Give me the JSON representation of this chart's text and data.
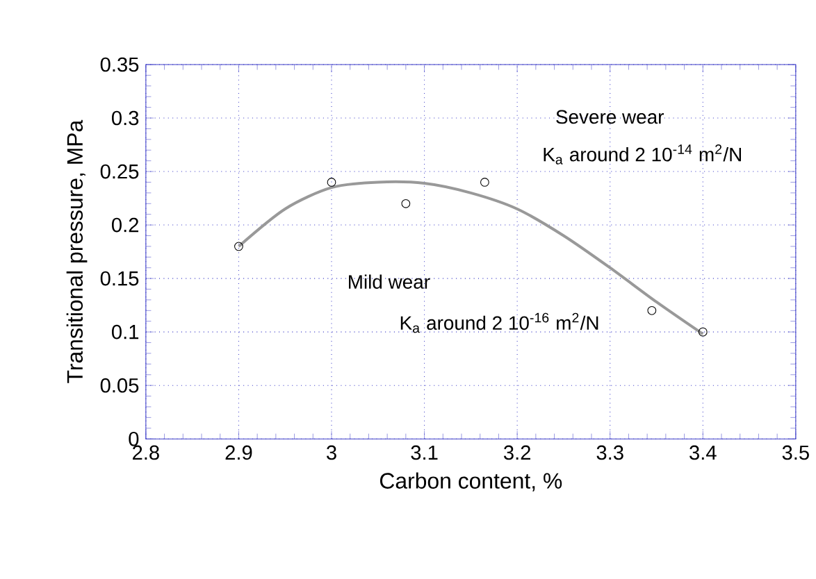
{
  "chart_data": {
    "type": "scatter",
    "xlabel": "Carbon content, %",
    "ylabel": "Transitional pressure, MPa",
    "series": [
      {
        "color": "#000000",
        "marker": "circle",
        "x": [
          2.9,
          3.0,
          3.08,
          3.165,
          3.345,
          3.4
        ],
        "values": [
          0.18,
          0.24,
          0.22,
          0.24,
          0.12,
          0.1
        ]
      },
      {
        "type": "line",
        "color": "#999999",
        "marker": "none",
        "x": [
          2.9,
          2.95,
          3.0,
          3.05,
          3.1,
          3.15,
          3.2,
          3.25,
          3.3,
          3.35,
          3.4
        ],
        "values": [
          0.18,
          0.215,
          0.235,
          0.24,
          0.239,
          0.23,
          0.215,
          0.19,
          0.16,
          0.128,
          0.098
        ]
      }
    ],
    "annotations": [
      "Severe wear",
      "K$_{a}$ around 2 10$^{-14}$ m$^{2}$/N",
      "Mild wear",
      "K$_{a}$ around 2 10$^{-16}$ m$^{2}$/N"
    ],
    "xlim": [
      2.8,
      3.5
    ],
    "ylim": [
      0,
      0.35
    ],
    "xticks": [
      2.8,
      2.9,
      3,
      3.1,
      3.2,
      3.3,
      3.4,
      3.5
    ],
    "yticks": [
      0,
      0.05,
      0.1,
      0.15,
      0.2,
      0.25,
      0.3,
      0.35
    ],
    "grid": true
  }
}
